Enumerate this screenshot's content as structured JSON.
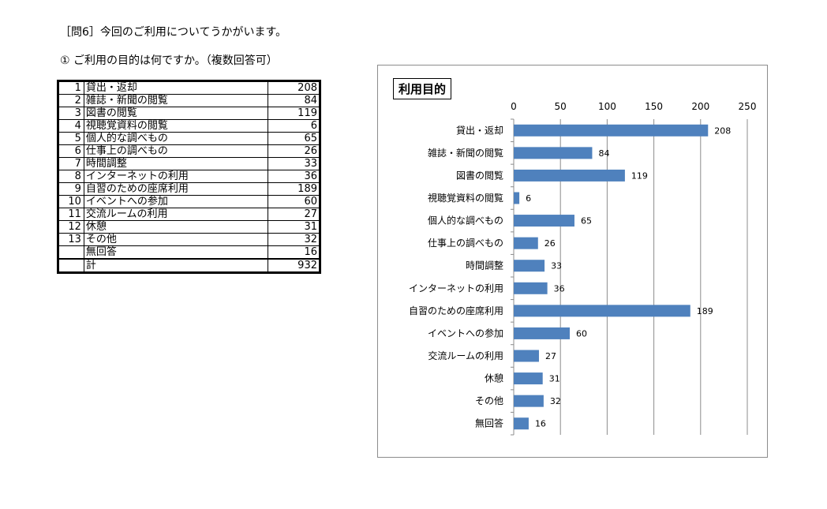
{
  "heading": "［問6］今回のご利用についてうかがいます。",
  "subheading": "① ご利用の目的は何ですか。（複数回答可）",
  "table": {
    "rows": [
      {
        "num": "1",
        "label": "貸出・返却",
        "value": "208"
      },
      {
        "num": "2",
        "label": "雑誌・新聞の閲覧",
        "value": "84"
      },
      {
        "num": "3",
        "label": "図書の閲覧",
        "value": "119"
      },
      {
        "num": "4",
        "label": "視聴覚資料の閲覧",
        "value": "6"
      },
      {
        "num": "5",
        "label": "個人的な調べもの",
        "value": "65"
      },
      {
        "num": "6",
        "label": "仕事上の調べもの",
        "value": "26"
      },
      {
        "num": "7",
        "label": "時間調整",
        "value": "33"
      },
      {
        "num": "8",
        "label": "インターネットの利用",
        "value": "36"
      },
      {
        "num": "9",
        "label": "自習のための座席利用",
        "value": "189"
      },
      {
        "num": "10",
        "label": "イベントへの参加",
        "value": "60"
      },
      {
        "num": "11",
        "label": "交流ルームの利用",
        "value": "27"
      },
      {
        "num": "12",
        "label": "休憩",
        "value": "31"
      },
      {
        "num": "13",
        "label": "その他",
        "value": "32"
      },
      {
        "num": "",
        "label": "無回答",
        "value": "16"
      },
      {
        "num": "",
        "label": "計",
        "value": "932"
      }
    ]
  },
  "chart_data": {
    "type": "bar",
    "orientation": "horizontal",
    "title": "利用目的",
    "categories": [
      "貸出・返却",
      "雑誌・新聞の閲覧",
      "図書の閲覧",
      "視聴覚資料の閲覧",
      "個人的な調べもの",
      "仕事上の調べもの",
      "時間調整",
      "インターネットの利用",
      "自習のための座席利用",
      "イベントへの参加",
      "交流ルームの利用",
      "休憩",
      "その他",
      "無回答"
    ],
    "values": [
      208,
      84,
      119,
      6,
      65,
      26,
      33,
      36,
      189,
      60,
      27,
      31,
      32,
      16
    ],
    "xlim": [
      0,
      250
    ],
    "xticks": [
      0,
      50,
      100,
      150,
      200,
      250
    ],
    "axis_position": "top",
    "grid": true,
    "bar_color": "#4f81bd",
    "data_labels": true
  }
}
